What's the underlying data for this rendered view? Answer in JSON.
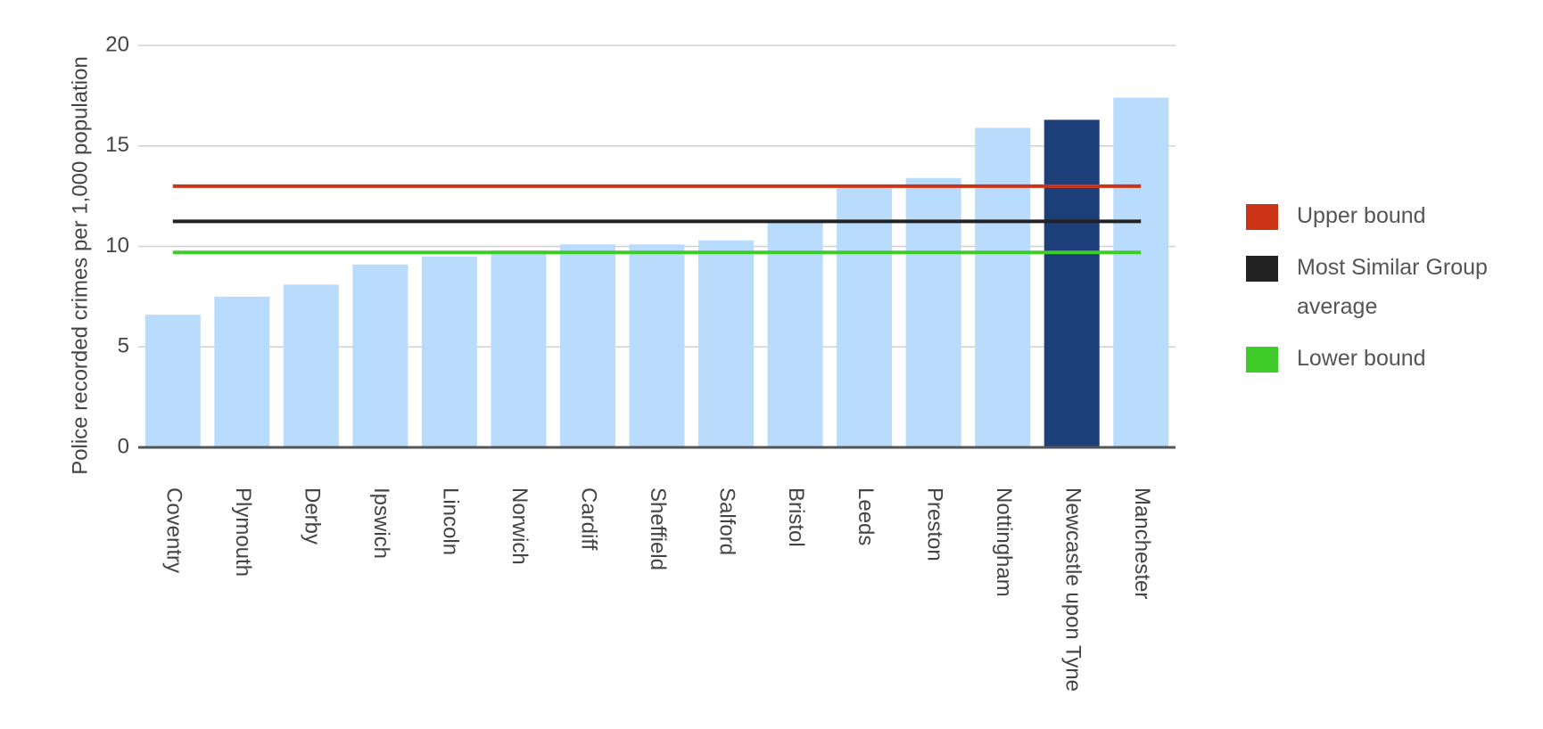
{
  "chart_data": {
    "type": "bar",
    "y_label": "Police recorded crimes per 1,000 population",
    "categories": [
      "Coventry",
      "Plymouth",
      "Derby",
      "Ipswich",
      "Lincoln",
      "Norwich",
      "Cardiff",
      "Sheffield",
      "Salford",
      "Bristol",
      "Leeds",
      "Preston",
      "Nottingham",
      "Newcastle upon Tyne",
      "Manchester"
    ],
    "values": [
      6.6,
      7.5,
      8.1,
      9.1,
      9.5,
      9.8,
      10.1,
      10.1,
      10.3,
      11.2,
      12.9,
      13.4,
      15.9,
      16.3,
      17.4
    ],
    "colors": [
      "#b9dcfc",
      "#b9dcfc",
      "#b9dcfc",
      "#b9dcfc",
      "#b9dcfc",
      "#b9dcfc",
      "#b9dcfc",
      "#b9dcfc",
      "#b9dcfc",
      "#b9dcfc",
      "#b9dcfc",
      "#b9dcfc",
      "#b9dcfc",
      "#1c3f7a",
      "#b9dcfc"
    ],
    "reference_lines": [
      {
        "name": "Upper bound",
        "color": "#cc3418",
        "value": 13.0
      },
      {
        "name": "Most Similar Group average",
        "color": "#222222",
        "value": 11.25
      },
      {
        "name": "Lower bound",
        "color": "#3ecc2a",
        "value": 9.7
      }
    ],
    "ylim": [
      0,
      20
    ],
    "yticks": [
      0,
      5,
      10,
      15,
      20
    ],
    "grid": true
  }
}
